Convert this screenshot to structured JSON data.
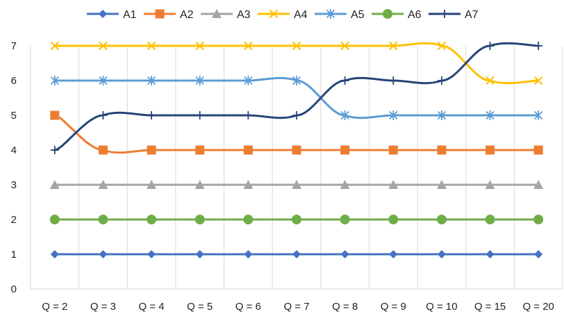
{
  "chart_data": {
    "type": "line",
    "title": "",
    "xlabel": "",
    "ylabel": "",
    "categories": [
      "Q = 2",
      "Q = 3",
      "Q = 4",
      "Q = 5",
      "Q = 6",
      "Q = 7",
      "Q = 8",
      "Q = 9",
      "Q = 10",
      "Q = 15",
      "Q = 20"
    ],
    "ylim": [
      0,
      7
    ],
    "yticks": [
      "0",
      "1",
      "2",
      "3",
      "4",
      "5",
      "6",
      "7"
    ],
    "grid": "vertical",
    "legend_position": "top",
    "smooth": true,
    "series": [
      {
        "name": "A1",
        "color": "#4472C4",
        "marker": "diamond",
        "values": [
          1,
          1,
          1,
          1,
          1,
          1,
          1,
          1,
          1,
          1,
          1
        ]
      },
      {
        "name": "A2",
        "color": "#ED7D31",
        "marker": "square",
        "values": [
          5,
          4,
          4,
          4,
          4,
          4,
          4,
          4,
          4,
          4,
          4
        ]
      },
      {
        "name": "A3",
        "color": "#A5A5A5",
        "marker": "triangle",
        "values": [
          3,
          3,
          3,
          3,
          3,
          3,
          3,
          3,
          3,
          3,
          3
        ]
      },
      {
        "name": "A4",
        "color": "#FFC000",
        "marker": "x",
        "values": [
          7,
          7,
          7,
          7,
          7,
          7,
          7,
          7,
          7,
          6,
          6
        ]
      },
      {
        "name": "A5",
        "color": "#5B9BD5",
        "marker": "star",
        "values": [
          6,
          6,
          6,
          6,
          6,
          6,
          5,
          5,
          5,
          5,
          5
        ]
      },
      {
        "name": "A6",
        "color": "#70AD47",
        "marker": "circle",
        "values": [
          2,
          2,
          2,
          2,
          2,
          2,
          2,
          2,
          2,
          2,
          2
        ]
      },
      {
        "name": "A7",
        "color": "#264478",
        "marker": "plus",
        "values": [
          4,
          5,
          5,
          5,
          5,
          5,
          6,
          6,
          6,
          7,
          7
        ]
      }
    ]
  }
}
